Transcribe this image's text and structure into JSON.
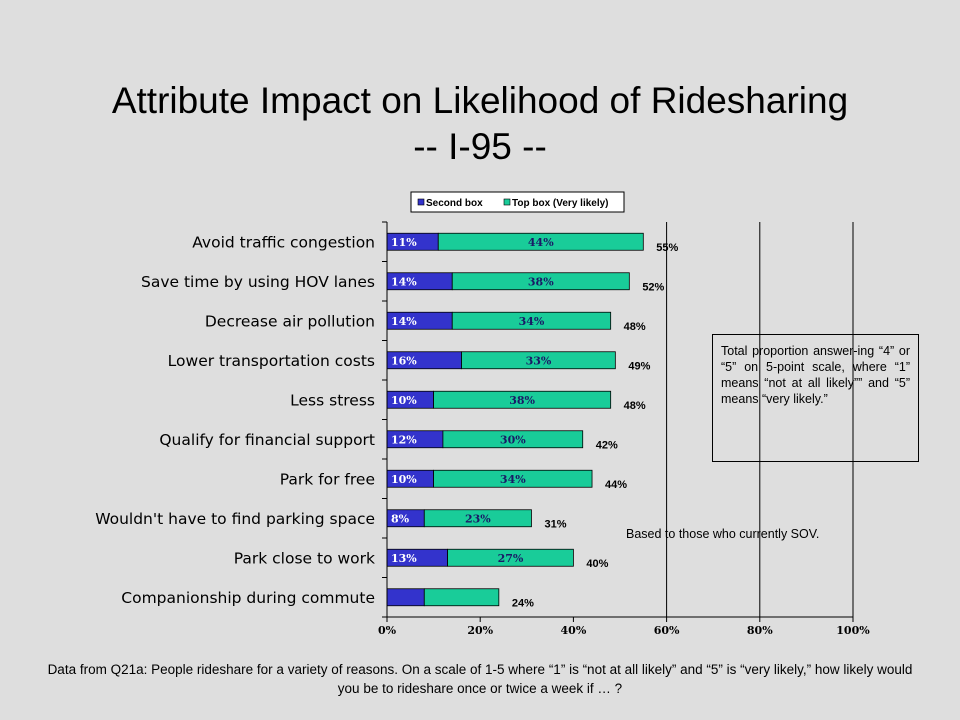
{
  "title_line1": "Attribute Impact on Likelihood of Ridesharing",
  "title_line2": "-- I-95 --",
  "note_box": "Total proportion answer-ing “4” or “5” on 5-point scale, where “1” means “not at all likely”” and “5” means “very likely.”",
  "based_note": "Based to those who currently SOV.",
  "footnote": "Data from Q21a:  People rideshare for a variety of reasons.  On a scale of 1-5 where “1” is “not at all likely” and “5” is “very likely,” how likely would you be to rideshare once or twice a week if … ?",
  "colors": {
    "second_box": "#3333cc",
    "top_box": "#19cc99"
  },
  "chart_data": {
    "type": "bar",
    "orientation": "horizontal",
    "stacked": true,
    "categories": [
      "Avoid traffic congestion",
      "Save time by using HOV lanes",
      "Decrease air pollution",
      "Lower transportation costs",
      "Less stress",
      "Qualify for financial support",
      "Park for free",
      "Wouldn't have to find parking space",
      "Park close to work",
      "Companionship during commute"
    ],
    "series": [
      {
        "name": "Second box",
        "values": [
          11,
          14,
          14,
          16,
          10,
          12,
          10,
          8,
          13,
          8
        ],
        "labels": [
          "11%",
          "14%",
          "14%",
          "16%",
          "10%",
          "12%",
          "10%",
          "8%",
          "13%",
          ""
        ]
      },
      {
        "name": "Top box (Very likely)",
        "values": [
          44,
          38,
          34,
          33,
          38,
          30,
          34,
          23,
          27,
          16
        ],
        "labels": [
          "44%",
          "38%",
          "34%",
          "33%",
          "38%",
          "30%",
          "34%",
          "23%",
          "27%",
          ""
        ]
      }
    ],
    "totals": [
      "55%",
      "52%",
      "48%",
      "49%",
      "48%",
      "42%",
      "44%",
      "31%",
      "40%",
      "24%"
    ],
    "xlim": [
      0,
      100
    ],
    "x_ticks": [
      "0%",
      "20%",
      "40%",
      "60%",
      "80%",
      "100%"
    ],
    "x_tick_values": [
      0,
      20,
      40,
      60,
      80,
      100
    ],
    "x_gridlines": [
      60,
      80,
      100
    ],
    "legend": {
      "placement": "top",
      "entries": [
        "Second box",
        "Top box (Very likely)"
      ]
    }
  }
}
